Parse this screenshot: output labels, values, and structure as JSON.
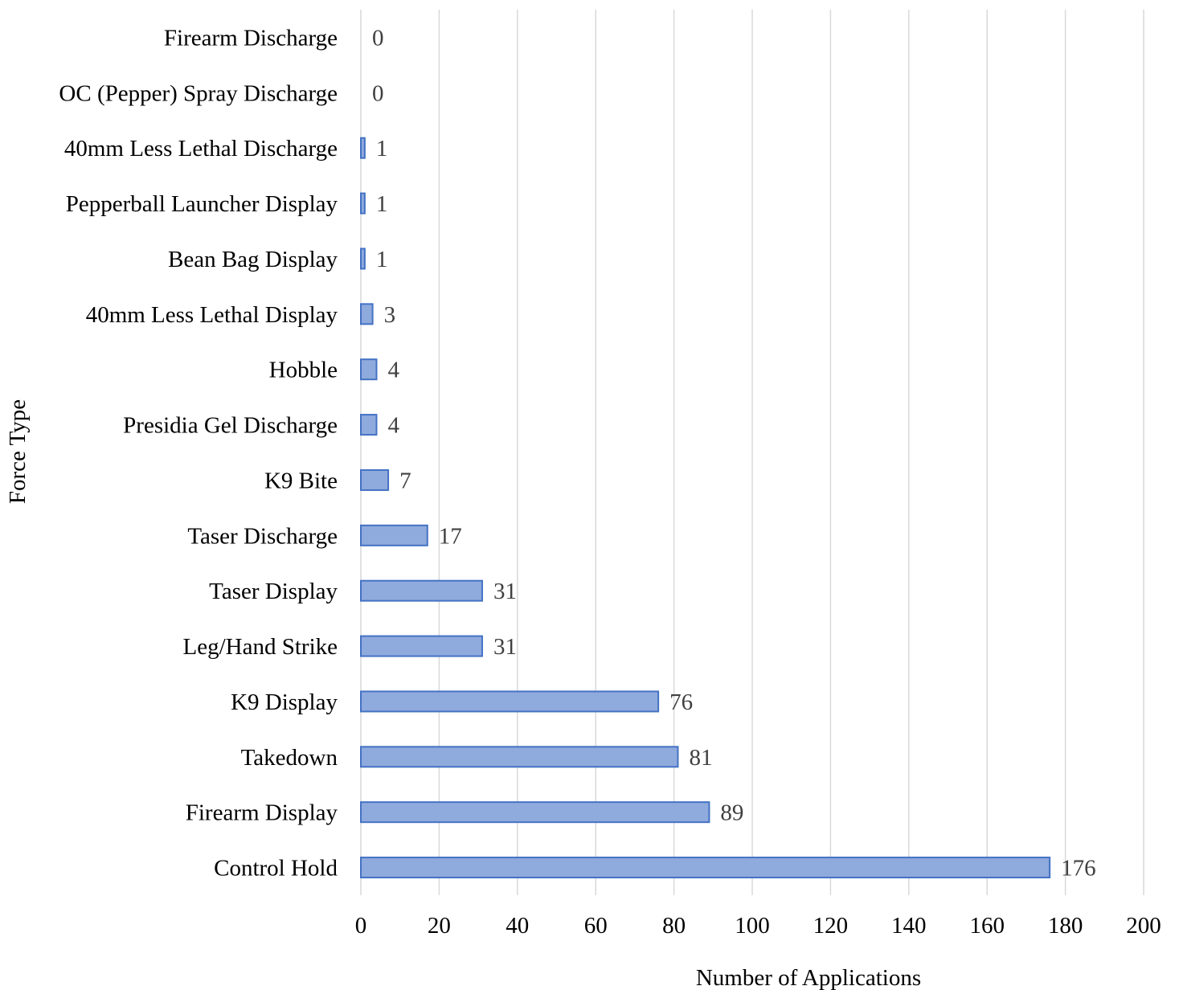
{
  "chart_data": {
    "type": "bar",
    "orientation": "horizontal",
    "categories": [
      "Control Hold",
      "Firearm Display",
      "Takedown",
      "K9 Display",
      "Leg/Hand Strike",
      "Taser Display",
      "Taser Discharge",
      "K9 Bite",
      "Presidia Gel Discharge",
      "Hobble",
      "40mm Less Lethal Display",
      "Bean Bag Display",
      "Pepperball Launcher Display",
      "40mm Less Lethal Discharge",
      "OC (Pepper) Spray Discharge",
      "Firearm Discharge"
    ],
    "values": [
      176,
      89,
      81,
      76,
      31,
      31,
      17,
      7,
      4,
      4,
      3,
      1,
      1,
      1,
      0,
      0
    ],
    "data_labels": [
      "176",
      "89",
      "81",
      "76",
      "31",
      "31",
      "17",
      "7",
      "4",
      "4",
      "3",
      "1",
      "1",
      "1",
      "0",
      "0"
    ],
    "xlabel": "Number of Applications",
    "ylabel": "Force Type",
    "xlim": [
      0,
      200
    ],
    "xticks": [
      "0",
      "20",
      "40",
      "60",
      "80",
      "100",
      "120",
      "140",
      "160",
      "180",
      "200"
    ],
    "grid": "vertical major gridlines",
    "legend": "none",
    "colors": {
      "bar_fill": "#8faadc",
      "bar_stroke": "#4472c4",
      "gridline": "#d9d9d9",
      "value_label": "#404040"
    }
  }
}
